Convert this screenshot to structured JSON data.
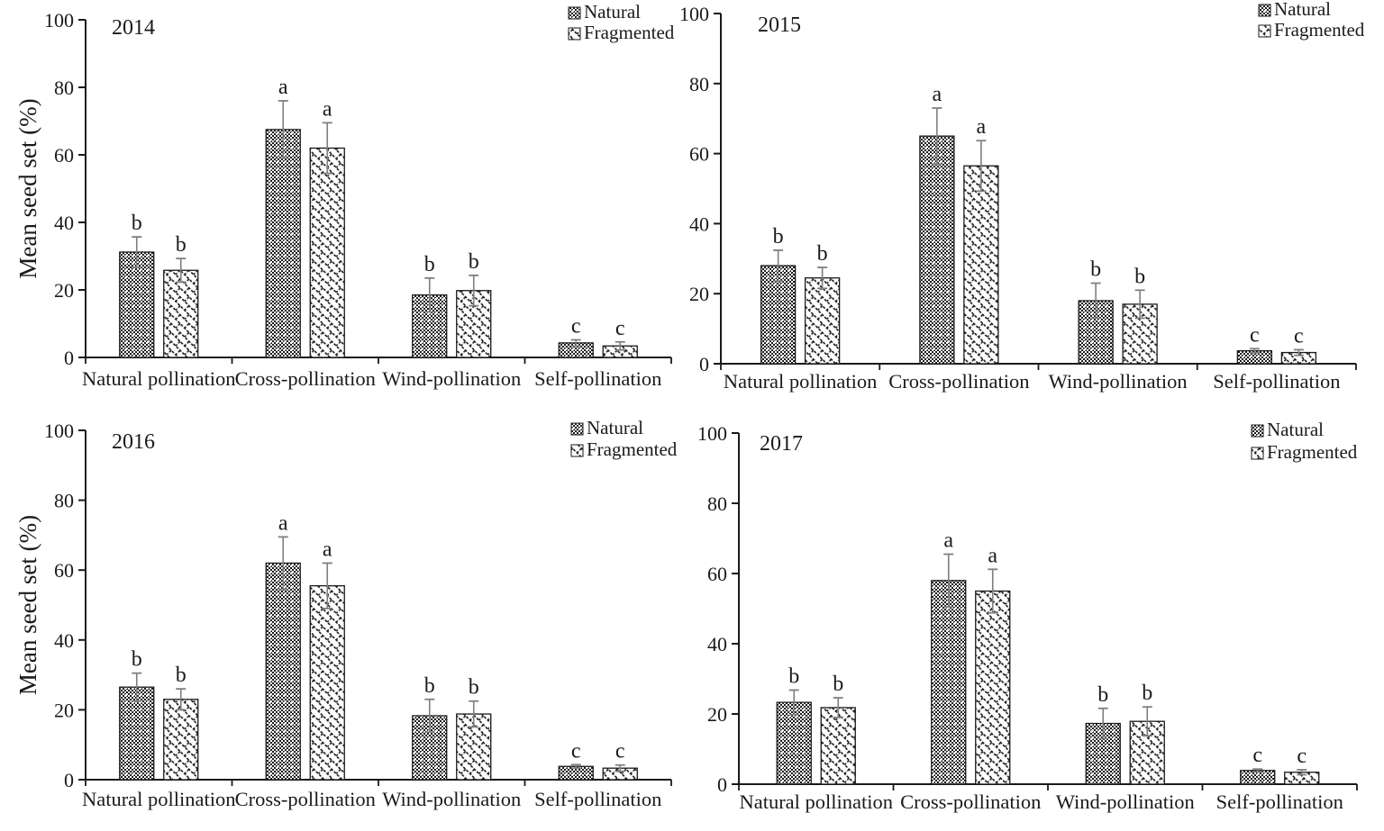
{
  "figure": {
    "ylabel": "Mean seed set (%)",
    "ink_color": "#1a1a1a",
    "error_bar_color": "#7f7f7f",
    "background_color": "#ffffff",
    "legend": {
      "position": "top-right-of-each-panel",
      "entries": [
        {
          "label": "Natural",
          "swatch": "checkerboard-dotted-pattern-icon"
        },
        {
          "label": "Fragmented",
          "swatch": "diagonal-brick-pattern-icon"
        }
      ]
    }
  },
  "chart_data": [
    {
      "type": "bar",
      "title": "2014",
      "ylabel": "Mean seed set (%)",
      "ylim": [
        0,
        100
      ],
      "yticks": [
        0,
        20,
        40,
        60,
        80,
        100
      ],
      "grid": false,
      "categories": [
        "Natural pollination",
        "Cross-pollination",
        "Wind-pollination",
        "Self-pollination"
      ],
      "series": [
        {
          "name": "Natural",
          "values": [
            31.2,
            67.5,
            18.5,
            4.3
          ],
          "errors": [
            4.5,
            8.5,
            5.0,
            0.9
          ],
          "letters": [
            "b",
            "a",
            "b",
            "c"
          ]
        },
        {
          "name": "Fragmented",
          "values": [
            25.8,
            62.0,
            19.8,
            3.4
          ],
          "errors": [
            3.5,
            7.5,
            4.5,
            1.2
          ],
          "letters": [
            "b",
            "a",
            "b",
            "c"
          ]
        }
      ]
    },
    {
      "type": "bar",
      "title": "2015",
      "ylabel": "",
      "ylim": [
        0,
        100
      ],
      "yticks": [
        0,
        20,
        40,
        60,
        80,
        100
      ],
      "grid": false,
      "categories": [
        "Natural pollination",
        "Cross-pollination",
        "Wind-pollination",
        "Self-pollination"
      ],
      "series": [
        {
          "name": "Natural",
          "values": [
            28.0,
            65.0,
            18.0,
            3.7
          ],
          "errors": [
            4.4,
            8.0,
            5.0,
            0.6
          ],
          "letters": [
            "b",
            "a",
            "b",
            "c"
          ]
        },
        {
          "name": "Fragmented",
          "values": [
            24.5,
            56.5,
            17.0,
            3.2
          ],
          "errors": [
            3.0,
            7.2,
            4.0,
            0.8
          ],
          "letters": [
            "b",
            "a",
            "b",
            "c"
          ]
        }
      ]
    },
    {
      "type": "bar",
      "title": "2016",
      "ylabel": "Mean seed set (%)",
      "ylim": [
        0,
        100
      ],
      "yticks": [
        0,
        20,
        40,
        60,
        80,
        100
      ],
      "grid": false,
      "categories": [
        "Natural pollination",
        "Cross-pollination",
        "Wind-pollination",
        "Self-pollination"
      ],
      "series": [
        {
          "name": "Natural",
          "values": [
            26.5,
            62.0,
            18.3,
            3.8
          ],
          "errors": [
            4.0,
            7.5,
            4.7,
            0.5
          ],
          "letters": [
            "b",
            "a",
            "b",
            "c"
          ]
        },
        {
          "name": "Fragmented",
          "values": [
            23.0,
            55.5,
            18.8,
            3.3
          ],
          "errors": [
            3.0,
            6.5,
            3.7,
            0.9
          ],
          "letters": [
            "b",
            "a",
            "b",
            "c"
          ]
        }
      ]
    },
    {
      "type": "bar",
      "title": "2017",
      "ylabel": "",
      "ylim": [
        0,
        100
      ],
      "yticks": [
        0,
        20,
        40,
        60,
        80,
        100
      ],
      "grid": false,
      "categories": [
        "Natural pollination",
        "Cross-pollination",
        "Wind-pollination",
        "Self-pollination"
      ],
      "series": [
        {
          "name": "Natural",
          "values": [
            23.3,
            58.0,
            17.3,
            3.9
          ],
          "errors": [
            3.5,
            7.5,
            4.3,
            0.4
          ],
          "letters": [
            "b",
            "a",
            "b",
            "c"
          ]
        },
        {
          "name": "Fragmented",
          "values": [
            21.8,
            55.0,
            17.9,
            3.4
          ],
          "errors": [
            2.8,
            6.2,
            4.1,
            0.7
          ],
          "letters": [
            "b",
            "a",
            "b",
            "c"
          ]
        }
      ]
    }
  ]
}
